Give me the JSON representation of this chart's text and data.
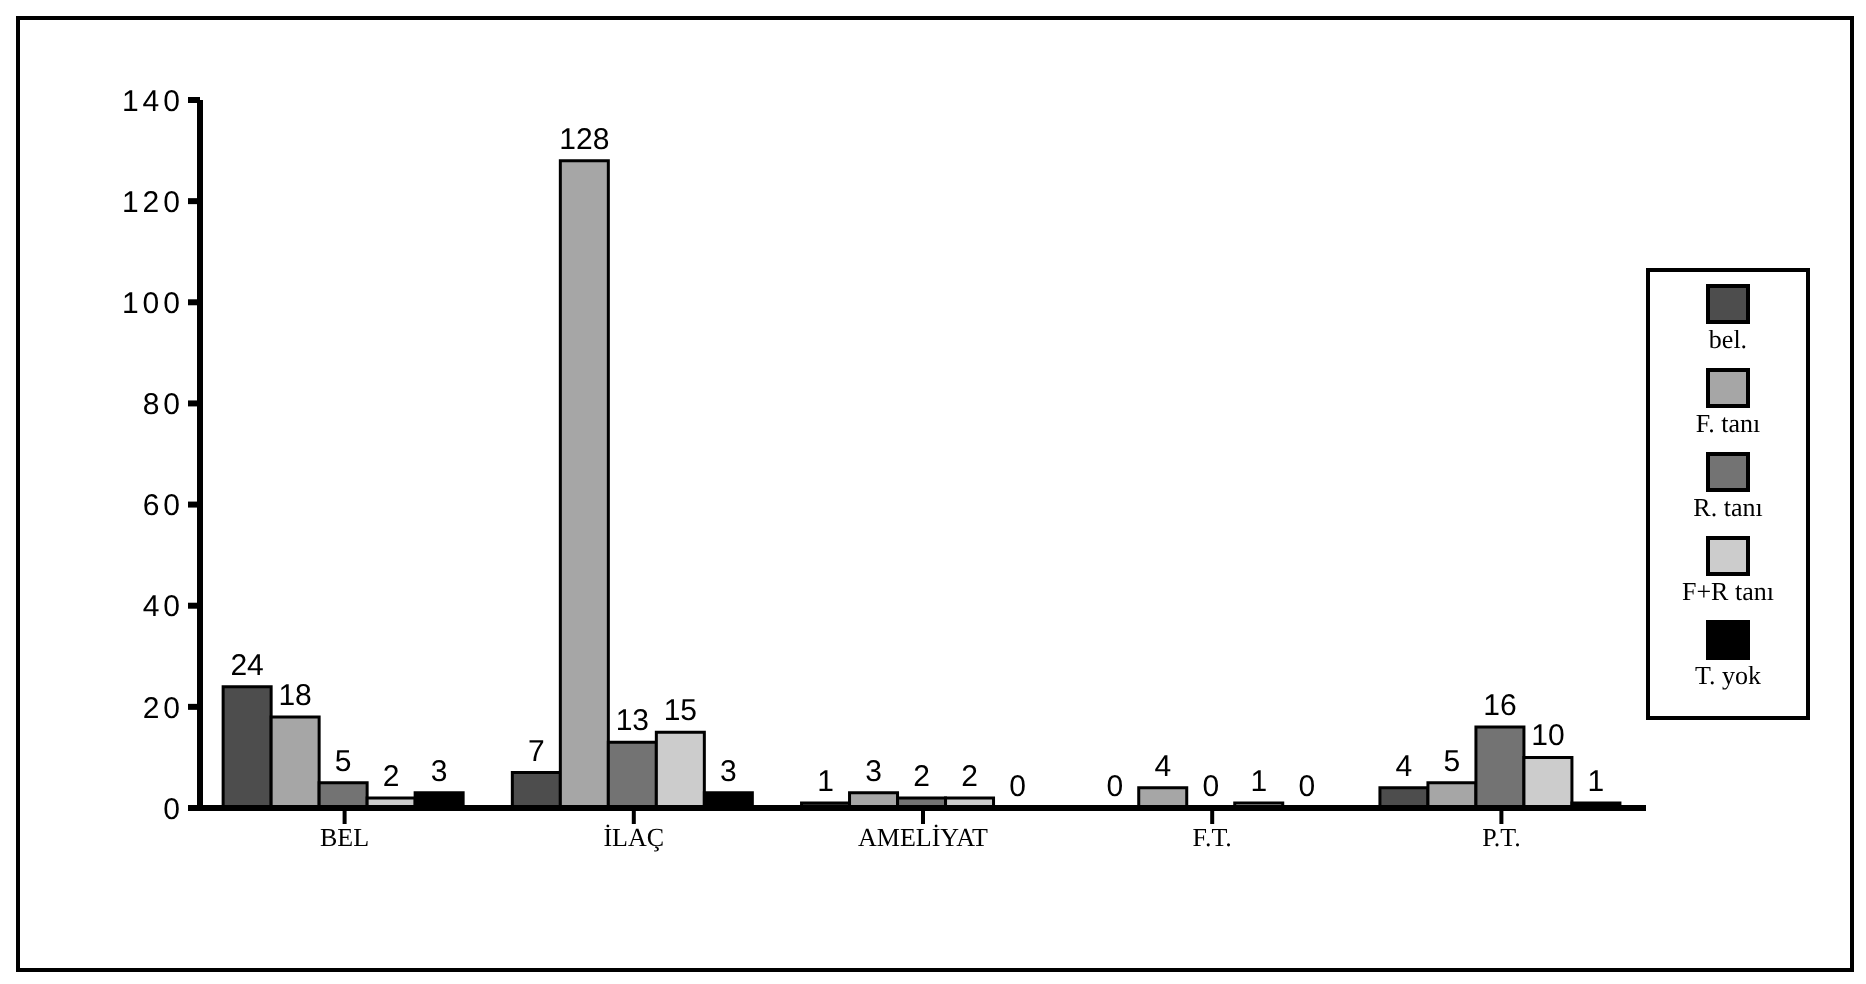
{
  "chart_data": {
    "type": "bar",
    "categories": [
      "BEL",
      "İLAÇ",
      "AMELİYAT",
      "F.T.",
      "P.T."
    ],
    "series": [
      {
        "name": "bel.",
        "color": "#4d4d4d",
        "values": [
          24,
          7,
          1,
          0,
          4
        ]
      },
      {
        "name": "F. tanı",
        "color": "#a6a6a6",
        "values": [
          18,
          128,
          3,
          4,
          5
        ]
      },
      {
        "name": "R. tanı",
        "color": "#737373",
        "values": [
          5,
          13,
          2,
          0,
          16
        ]
      },
      {
        "name": "F+R tanı",
        "color": "#cccccc",
        "values": [
          2,
          15,
          2,
          1,
          10
        ]
      },
      {
        "name": "T. yok",
        "color": "#000000",
        "values": [
          3,
          3,
          0,
          0,
          1
        ]
      }
    ],
    "ylim": [
      0,
      140
    ],
    "yticks": [
      0,
      20,
      40,
      60,
      80,
      100,
      120,
      140
    ],
    "grid": false,
    "legend": "right",
    "data_labels": true
  }
}
